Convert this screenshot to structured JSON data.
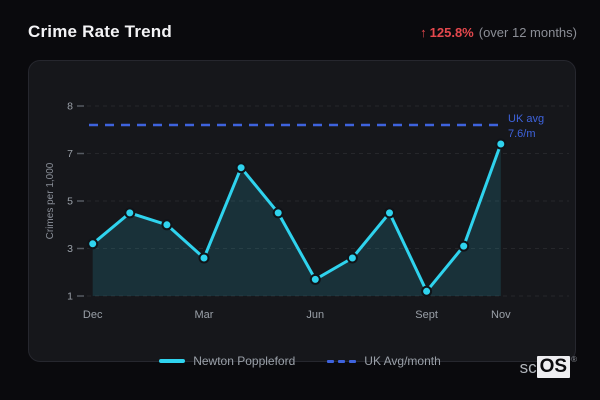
{
  "header": {
    "title": "Crime Rate Trend",
    "stat": {
      "arrow": "↑",
      "value": "125.8%",
      "caption": "(over 12 months)"
    }
  },
  "chart_data": {
    "type": "line",
    "title": "Crime Rate Trend",
    "ylabel": "Crimes per 1,000",
    "y_ticks": [
      8,
      7,
      5,
      3,
      1
    ],
    "num_points": 12,
    "values": [
      3.2,
      4.5,
      4.0,
      2.6,
      6.4,
      4.5,
      1.7,
      2.6,
      4.5,
      1.2,
      3.1,
      7.2
    ],
    "x_tick_labels": [
      {
        "label": "Dec",
        "index": 0
      },
      {
        "label": "Mar",
        "index": 3
      },
      {
        "label": "Jun",
        "index": 6
      },
      {
        "label": "Sept",
        "index": 9
      },
      {
        "label": "Nov",
        "index": 11
      }
    ],
    "reference": {
      "value": 7.6,
      "label_line1": "UK avg",
      "label_line2": "7.6/m"
    },
    "series_color": "#2fd3ee",
    "reference_color": "#3e63dd",
    "area_fill": "rgba(47,211,238,0.14)",
    "grid": true,
    "legend_position": "bottom",
    "legend": [
      {
        "label": "Newton Poppleford",
        "style": "solid",
        "color": "#2fd3ee"
      },
      {
        "label": "UK Avg/month",
        "style": "dashed",
        "color": "#3e63dd"
      }
    ]
  },
  "colors": {
    "accent_red": "#e5484d",
    "background": "#0a0a0d",
    "panel": "#16171b",
    "muted_text": "#9aa0a8"
  },
  "brand": {
    "prefix": "sc",
    "name": "OS",
    "registered": "®"
  }
}
